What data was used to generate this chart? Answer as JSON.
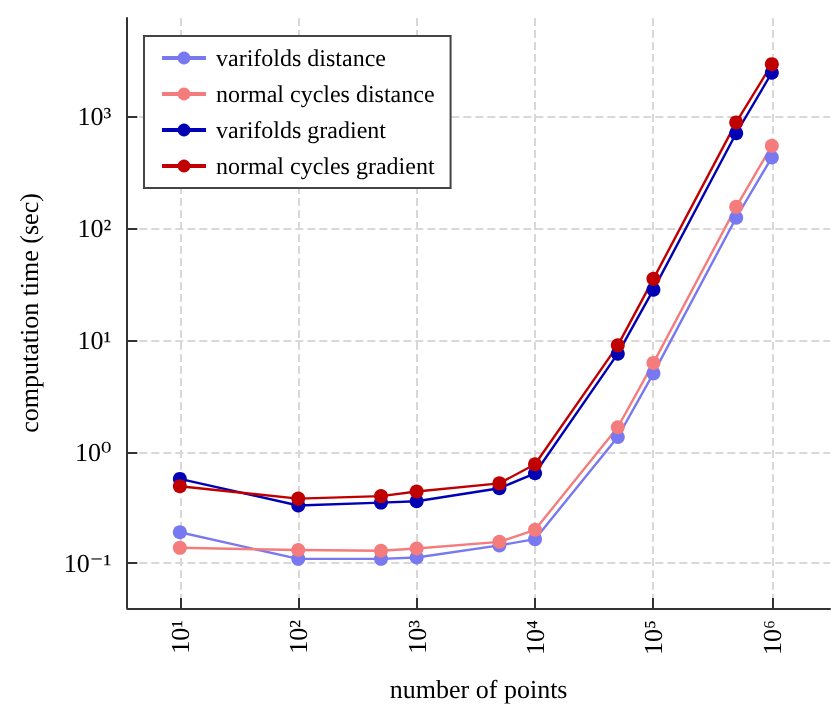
{
  "chart_data": {
    "type": "line",
    "xlabel": "number of points",
    "ylabel": "computation time (sec)",
    "x": [
      10,
      100,
      500,
      1000,
      5000,
      10000,
      50000,
      100000,
      500000,
      1000000
    ],
    "series": [
      {
        "name": "varifolds distance",
        "color": "#7878f0",
        "values": [
          0.19,
          0.11,
          0.11,
          0.113,
          0.145,
          0.165,
          1.35,
          5.0,
          123,
          425
        ]
      },
      {
        "name": "normal cycles distance",
        "color": "#f47c7c",
        "values": [
          0.138,
          0.132,
          0.13,
          0.136,
          0.156,
          0.2,
          1.65,
          6.2,
          154,
          540
        ]
      },
      {
        "name": "varifolds gradient",
        "color": "#0000b4",
        "values": [
          0.57,
          0.33,
          0.35,
          0.36,
          0.47,
          0.64,
          7.5,
          28,
          700,
          2430
        ]
      },
      {
        "name": "normal cycles gradient",
        "color": "#c00000",
        "values": [
          0.49,
          0.38,
          0.4,
          0.44,
          0.52,
          0.77,
          8.9,
          35,
          875,
          2900
        ]
      }
    ],
    "log": "xy",
    "xlim": [
      3.6,
      3100000
    ],
    "ylim": [
      0.04,
      7500
    ],
    "xticks": [
      {
        "value": 10,
        "label": "10¹"
      },
      {
        "value": 100,
        "label": "10²"
      },
      {
        "value": 1000,
        "label": "10³"
      },
      {
        "value": 10000,
        "label": "10⁴"
      },
      {
        "value": 100000,
        "label": "10⁵"
      },
      {
        "value": 1000000,
        "label": "10⁶"
      }
    ],
    "yticks": [
      {
        "value": 0.1,
        "label": "10⁻¹"
      },
      {
        "value": 1,
        "label": "10⁰"
      },
      {
        "value": 10,
        "label": "10¹"
      },
      {
        "value": 100,
        "label": "10²"
      },
      {
        "value": 1000,
        "label": "10³"
      }
    ],
    "grid": true,
    "legend": "top left",
    "marker": "circle",
    "line_style": "solid"
  }
}
